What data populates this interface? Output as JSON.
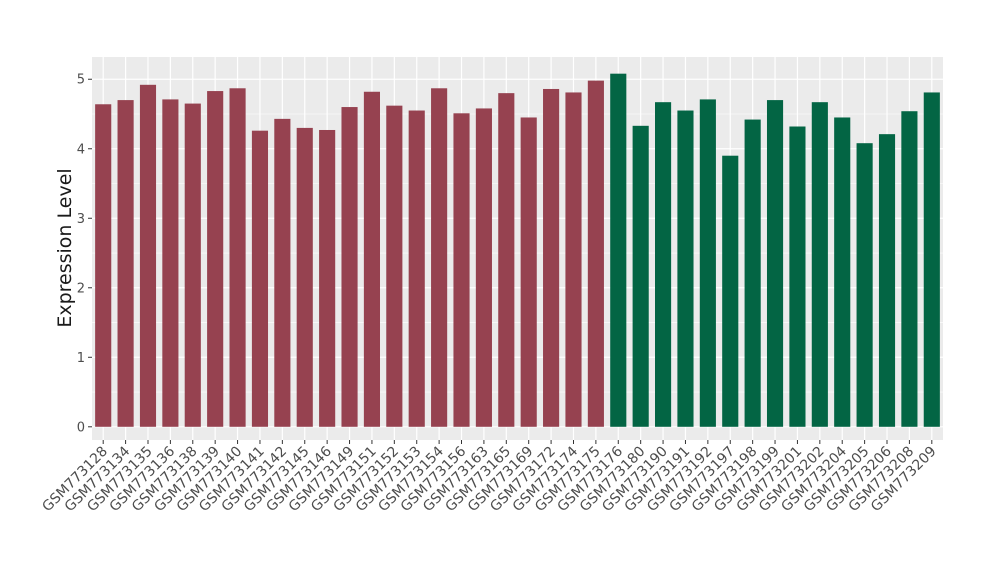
{
  "chart_data": {
    "type": "bar",
    "xlabel": "",
    "ylabel": "Expression Level",
    "ylim": [
      -0.19,
      5.32
    ],
    "yticks": [
      0,
      1,
      2,
      3,
      4,
      5
    ],
    "grid": true,
    "legend": "none",
    "colors": {
      "panel": "#ebebeb",
      "grid": "#ffffff",
      "group_a": "#964250",
      "group_b": "#036544",
      "tick": "#4d4d4d",
      "label": "#1a1a1a"
    },
    "categories": [
      "GSM773128",
      "GSM773134",
      "GSM773135",
      "GSM773136",
      "GSM773138",
      "GSM773139",
      "GSM773140",
      "GSM773141",
      "GSM773142",
      "GSM773145",
      "GSM773146",
      "GSM773149",
      "GSM773151",
      "GSM773152",
      "GSM773153",
      "GSM773154",
      "GSM773156",
      "GSM773163",
      "GSM773165",
      "GSM773169",
      "GSM773172",
      "GSM773174",
      "GSM773175",
      "GSM773176",
      "GSM773180",
      "GSM773190",
      "GSM773191",
      "GSM773192",
      "GSM773197",
      "GSM773198",
      "GSM773199",
      "GSM773201",
      "GSM773202",
      "GSM773204",
      "GSM773205",
      "GSM773206",
      "GSM773208",
      "GSM773209"
    ],
    "values": [
      4.64,
      4.7,
      4.92,
      4.71,
      4.65,
      4.83,
      4.87,
      4.26,
      4.43,
      4.3,
      4.27,
      4.6,
      4.82,
      4.62,
      4.55,
      4.87,
      4.51,
      4.58,
      4.8,
      4.45,
      4.86,
      4.81,
      4.98,
      5.08,
      4.33,
      4.67,
      4.55,
      4.71,
      3.9,
      4.42,
      4.7,
      4.32,
      4.67,
      4.45,
      4.08,
      4.21,
      4.54,
      4.81
    ],
    "groups": [
      "a",
      "a",
      "a",
      "a",
      "a",
      "a",
      "a",
      "a",
      "a",
      "a",
      "a",
      "a",
      "a",
      "a",
      "a",
      "a",
      "a",
      "a",
      "a",
      "a",
      "a",
      "a",
      "a",
      "b",
      "b",
      "b",
      "b",
      "b",
      "b",
      "b",
      "b",
      "b",
      "b",
      "b",
      "b",
      "b",
      "b",
      "b"
    ]
  }
}
